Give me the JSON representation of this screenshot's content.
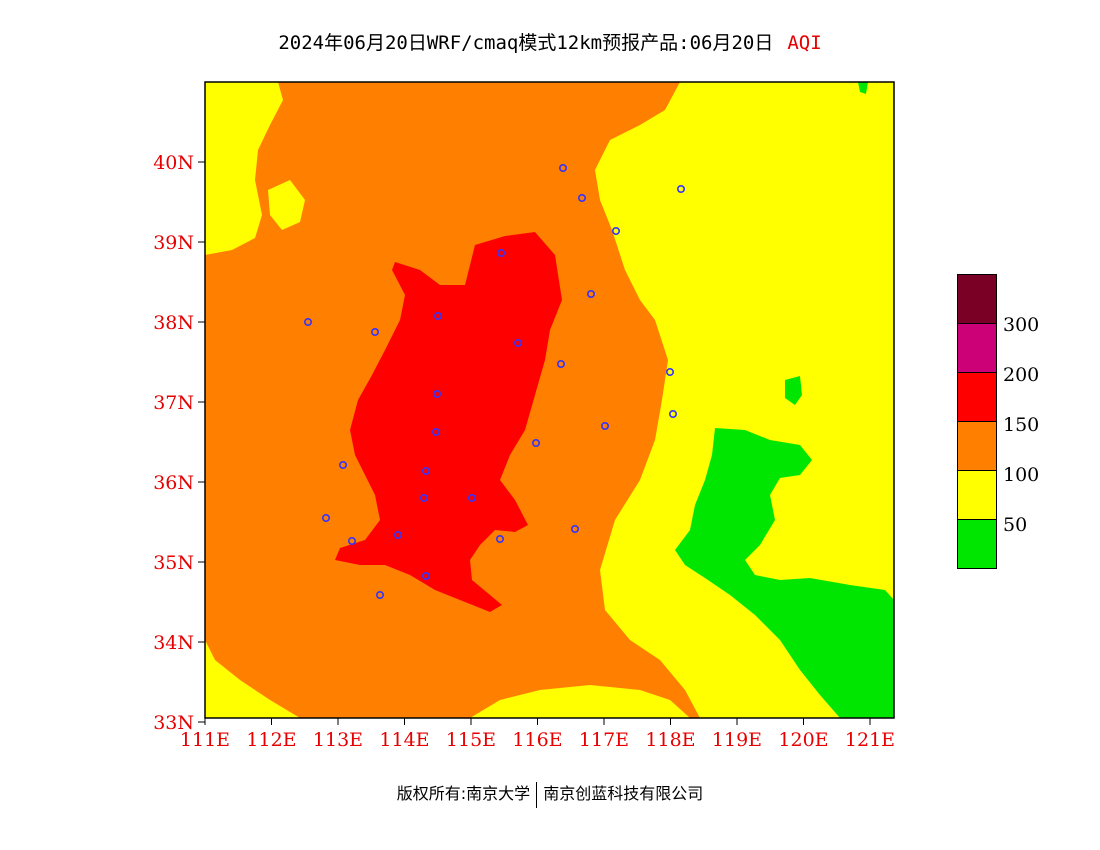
{
  "header": {
    "title": "2024年06月20日WRF/cmaq模式12km预报产品:06月20日",
    "product": "AQI"
  },
  "map": {
    "lat_labels": [
      "40N",
      "39N",
      "38N",
      "37N",
      "36N",
      "35N",
      "34N",
      "33N"
    ],
    "lon_labels": [
      "111E",
      "112E",
      "113E",
      "114E",
      "115E",
      "116E",
      "117E",
      "118E",
      "119E",
      "120E",
      "121E"
    ],
    "axis_label_color": "#e60000"
  },
  "legend": {
    "colors": [
      "#7a0026",
      "#cc0077",
      "#ff0000",
      "#ff8000",
      "#ffff00",
      "#00e600"
    ],
    "labels": [
      "300",
      "200",
      "150",
      "100",
      "50"
    ]
  },
  "footer": {
    "left": "版权所有:南京大学",
    "right": "南京创蓝科技有限公司"
  }
}
